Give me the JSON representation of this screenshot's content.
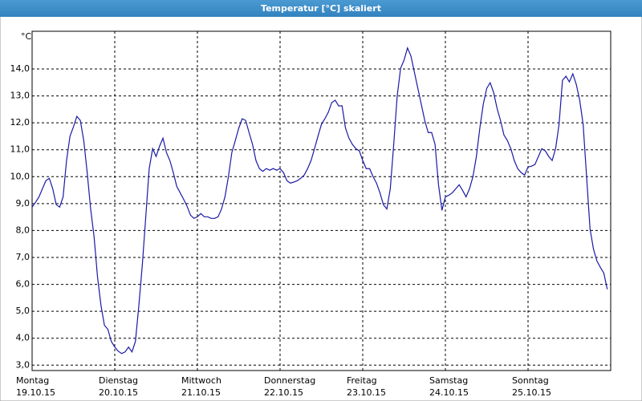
{
  "chart_data": {
    "type": "line",
    "title": "Temperatur [°C] skaliert",
    "y_label": "°C",
    "x": [
      0,
      1,
      2,
      3,
      4,
      5,
      6,
      7,
      8,
      9,
      10,
      11,
      12,
      13,
      14,
      15,
      16,
      17,
      18,
      19,
      20,
      21,
      22,
      23,
      24,
      25,
      26,
      27,
      28,
      29,
      30,
      31,
      32,
      33,
      34,
      35,
      36,
      37,
      38,
      39,
      40,
      41,
      42,
      43,
      44,
      45,
      46,
      47,
      48,
      49,
      50,
      51,
      52,
      53,
      54,
      55,
      56,
      57,
      58,
      59,
      60,
      61,
      62,
      63,
      64,
      65,
      66,
      67,
      68,
      69,
      70,
      71,
      72,
      73,
      74,
      75,
      76,
      77,
      78,
      79,
      80,
      81,
      82,
      83,
      84,
      85,
      86,
      87,
      88,
      89,
      90,
      91,
      92,
      93,
      94,
      95,
      96,
      97,
      98,
      99,
      100,
      101,
      102,
      103,
      104,
      105,
      106,
      107,
      108,
      109,
      110,
      111,
      112,
      113,
      114,
      115,
      116,
      117,
      118,
      119,
      120,
      121,
      122,
      123,
      124,
      125,
      126,
      127,
      128,
      129,
      130,
      131,
      132,
      133,
      134,
      135,
      136,
      137,
      138,
      139,
      140,
      141,
      142,
      143,
      144,
      145,
      146,
      147,
      148,
      149,
      150,
      151,
      152,
      153,
      154,
      155,
      156,
      157,
      158,
      159,
      160,
      161,
      162,
      163,
      164,
      165,
      166,
      167
    ],
    "series": [
      {
        "name": "Temperatur",
        "color": "#1a1aa6",
        "values": [
          8.87,
          9.05,
          9.25,
          9.55,
          9.85,
          9.94,
          9.55,
          8.96,
          8.87,
          9.25,
          10.6,
          11.5,
          11.85,
          12.24,
          12.09,
          11.34,
          10.15,
          8.8,
          7.76,
          6.27,
          5.22,
          4.48,
          4.33,
          3.88,
          3.67,
          3.52,
          3.43,
          3.49,
          3.67,
          3.49,
          3.88,
          5.22,
          6.72,
          8.5,
          10.3,
          11.04,
          10.75,
          11.13,
          11.43,
          10.9,
          10.6,
          10.15,
          9.64,
          9.4,
          9.16,
          8.9,
          8.57,
          8.45,
          8.51,
          8.63,
          8.51,
          8.51,
          8.45,
          8.45,
          8.51,
          8.8,
          9.25,
          10.0,
          10.9,
          11.34,
          11.8,
          12.15,
          12.09,
          11.64,
          11.2,
          10.6,
          10.3,
          10.2,
          10.3,
          10.24,
          10.3,
          10.24,
          10.3,
          10.15,
          9.85,
          9.76,
          9.8,
          9.85,
          9.94,
          10.06,
          10.3,
          10.6,
          11.04,
          11.5,
          11.94,
          12.15,
          12.39,
          12.75,
          12.84,
          12.63,
          12.63,
          11.8,
          11.43,
          11.2,
          11.04,
          10.96,
          10.6,
          10.3,
          10.3,
          10.0,
          9.76,
          9.4,
          8.96,
          8.8,
          9.55,
          11.2,
          12.99,
          14.03,
          14.33,
          14.78,
          14.48,
          13.88,
          13.28,
          12.69,
          12.09,
          11.64,
          11.64,
          11.2,
          9.7,
          8.75,
          9.25,
          9.31,
          9.4,
          9.55,
          9.7,
          9.49,
          9.25,
          9.55,
          10.0,
          10.75,
          11.8,
          12.69,
          13.28,
          13.49,
          13.13,
          12.54,
          12.09,
          11.55,
          11.34,
          11.04,
          10.6,
          10.3,
          10.15,
          10.06,
          10.36,
          10.39,
          10.45,
          10.75,
          11.04,
          10.96,
          10.75,
          10.6,
          11.04,
          11.94,
          13.58,
          13.73,
          13.52,
          13.82,
          13.43,
          12.84,
          11.94,
          10.0,
          8.06,
          7.31,
          6.87,
          6.63,
          6.42,
          5.82
        ]
      }
    ],
    "xlim": [
      0,
      168
    ],
    "xticks": [
      {
        "value": 0,
        "label": "Montag"
      },
      {
        "value": 24,
        "label": "Dienstag"
      },
      {
        "value": 48,
        "label": "Mittwoch"
      },
      {
        "value": 72,
        "label": "Donnerstag"
      },
      {
        "value": 96,
        "label": "Freitag"
      },
      {
        "value": 120,
        "label": "Samstag"
      },
      {
        "value": 144,
        "label": "Sonntag"
      }
    ],
    "xtick_dates": [
      "19.10.15",
      "20.10.15",
      "21.10.15",
      "22.10.15",
      "23.10.15",
      "24.10.15",
      "25.10.15"
    ],
    "ylim": [
      2.8,
      15.4
    ],
    "yticks": [
      {
        "value": 3,
        "label": "3,0"
      },
      {
        "value": 4,
        "label": "4,0"
      },
      {
        "value": 5,
        "label": "5,0"
      },
      {
        "value": 6,
        "label": "6,0"
      },
      {
        "value": 7,
        "label": "7,0"
      },
      {
        "value": 8,
        "label": "8,0"
      },
      {
        "value": 9,
        "label": "9,0"
      },
      {
        "value": 10,
        "label": "10,0"
      },
      {
        "value": 11,
        "label": "11,0"
      },
      {
        "value": 12,
        "label": "12,0"
      },
      {
        "value": 13,
        "label": "13,0"
      },
      {
        "value": 14,
        "label": "14,0"
      }
    ],
    "grid": true
  }
}
